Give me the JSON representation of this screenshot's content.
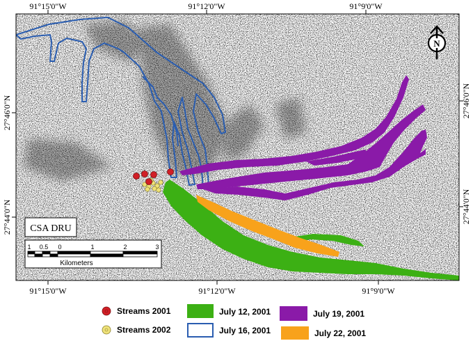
{
  "map": {
    "top_lon_labels": [
      "91°15'0\"W",
      "91°12'0\"W",
      "91°9'0\"W"
    ],
    "bottom_lon_labels": [
      "91°15'0\"W",
      "91°12'0\"W",
      "91°9'0\"W"
    ],
    "left_lat_labels": [
      "27°46'0\"N",
      "27°44'0\"N"
    ],
    "right_lat_labels": [
      "27°46'0\"N",
      "27°44'0\"N"
    ],
    "site_label": "CSA DRU",
    "north_arrow_letter": "N",
    "scale_bar": {
      "tick_labels": [
        "1",
        "0.5",
        "0",
        "1",
        "2",
        "3"
      ],
      "unit_label": "Kilometers"
    }
  },
  "legend": {
    "items": [
      {
        "label": "Streams 2001",
        "symbol": "red-dot",
        "color": "#d11f26"
      },
      {
        "label": "Streams 2002",
        "symbol": "yellow-dot",
        "color": "#efe27a"
      },
      {
        "label": "July 12, 2001",
        "symbol": "filled-rect",
        "color": "#3cb014"
      },
      {
        "label": "July 16, 2001",
        "symbol": "outline-rect",
        "color": "#2a5db0"
      },
      {
        "label": "July 19, 2001",
        "symbol": "filled-rect",
        "color": "#8a1aa8"
      },
      {
        "label": "July 22, 2001",
        "symbol": "filled-rect",
        "color": "#f8a21b"
      }
    ]
  },
  "colors": {
    "july12": "#3cb014",
    "july16": "#2a5db0",
    "july19": "#8a1aa8",
    "july22": "#f8a21b",
    "streams2001": "#d11f26",
    "streams2002": "#efe27a"
  }
}
